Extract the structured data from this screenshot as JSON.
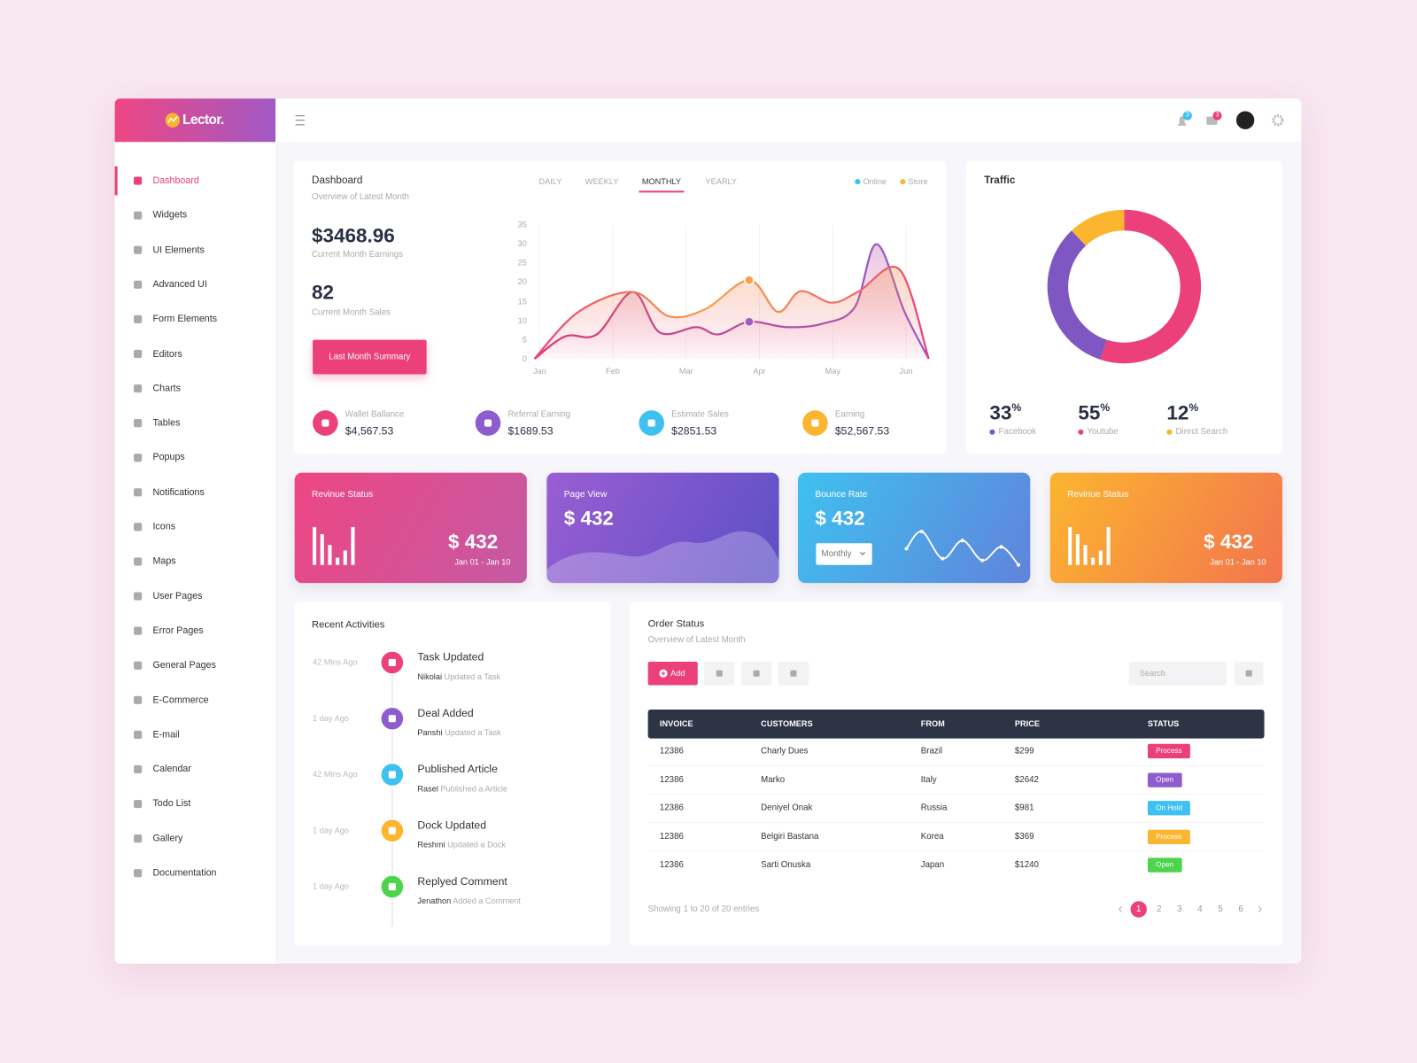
{
  "brand": "Lector.",
  "header": {
    "notifications": 3,
    "messages": 3
  },
  "sidebar": {
    "active": 0,
    "items": [
      "Dashboard",
      "Widgets",
      "UI Elements",
      "Advanced UI",
      "Form Elements",
      "Editors",
      "Charts",
      "Tables",
      "Popups",
      "Notifications",
      "Icons",
      "Maps",
      "User Pages",
      "Error Pages",
      "General Pages",
      "E-Commerce",
      "E-mail",
      "Calendar",
      "Todo List",
      "Gallery",
      "Documentation"
    ]
  },
  "dashboard": {
    "title": "Dashboard",
    "subtitle": "Overview of Latest Month",
    "tabs": [
      "DAILY",
      "WEEKLY",
      "MONTHLY",
      "YEARLY"
    ],
    "active_tab": 2,
    "earnings": "$3468.96",
    "earnings_label": "Current Month Earnings",
    "sales": "82",
    "sales_label": "Current Month Sales",
    "button": "Last Month Summary",
    "chart": {
      "type": "line",
      "xlim": [
        -0.1,
        5.4
      ],
      "xticks": [
        {
          "value": 0,
          "label": "Jan"
        },
        {
          "value": 1,
          "label": "Feb"
        },
        {
          "value": 2,
          "label": "Mar"
        },
        {
          "value": 3,
          "label": "Apr"
        },
        {
          "value": 4,
          "label": "May"
        },
        {
          "value": 5,
          "label": "Jun"
        }
      ],
      "ylim": [
        0,
        35
      ],
      "yticks": [
        0,
        5,
        10,
        15,
        20,
        25,
        30,
        35
      ],
      "grid": "x",
      "legend": "top-right",
      "series": [
        {
          "name": "Online",
          "color": "#3ec1f0",
          "x": [
            -0.07,
            0.35,
            0.78,
            1.27,
            1.64,
            2.14,
            2.44,
            2.86,
            3.37,
            3.86,
            4.3,
            4.6,
            4.98,
            5.31
          ],
          "values": [
            0,
            5.9,
            6.4,
            17.5,
            6.9,
            8.3,
            6.4,
            9.7,
            8.3,
            9.2,
            13.5,
            30,
            12.3,
            0
          ]
        },
        {
          "name": "Store",
          "color": "#fbb52f",
          "x": [
            -0.07,
            0.53,
            1.27,
            1.77,
            2.26,
            2.86,
            3.25,
            3.56,
            3.99,
            4.36,
            4.91,
            5.31
          ],
          "values": [
            0,
            12.3,
            17.5,
            11.1,
            13,
            20.6,
            12.3,
            17.7,
            14.7,
            17.7,
            23.4,
            0
          ]
        }
      ]
    },
    "stats": [
      {
        "label": "Wallet Ballance",
        "value": "$4,567.53",
        "color": "#ec407a"
      },
      {
        "label": "Referral Earning",
        "value": "$1689.53",
        "color": "#8e5ccf"
      },
      {
        "label": "Estimate Sales",
        "value": "$2851.53",
        "color": "#3ec1f0"
      },
      {
        "label": "Earning",
        "value": "$52,567.53",
        "color": "#fbb52f"
      }
    ]
  },
  "traffic": {
    "title": "Traffic",
    "chart": {
      "type": "pie",
      "series": [
        {
          "name": "Facebook",
          "value": 33,
          "unit": "%",
          "color": "#7e57c2"
        },
        {
          "name": "Youtube",
          "value": 55,
          "unit": "%",
          "color": "#ec407a"
        },
        {
          "name": "Direct Search",
          "value": 12,
          "unit": "%",
          "color": "#fbb52f"
        }
      ]
    }
  },
  "cards": [
    {
      "title": "Revinue Status",
      "value": "$ 432",
      "range": "Jan 01 - Jan 10"
    },
    {
      "title": "Page View",
      "value": "$ 432"
    },
    {
      "title": "Bounce Rate",
      "value": "$ 432",
      "select": "Monthly"
    },
    {
      "title": "Revinue Status",
      "value": "$ 432",
      "range": "Jan 01 - Jan 10"
    }
  ],
  "activities": {
    "title": "Recent Activities",
    "items": [
      {
        "time": "42 Mins Ago",
        "title": "Task Updated",
        "user": "Nikolai",
        "action": "Updated a Task",
        "color": "#ec407a"
      },
      {
        "time": "1 day Ago",
        "title": "Deal Added",
        "user": "Panshi",
        "action": "Updated a Task",
        "color": "#8e5ccf"
      },
      {
        "time": "42 Mins Ago",
        "title": "Published Article",
        "user": "Rasel",
        "action": "Published a Article",
        "color": "#3ec1f0"
      },
      {
        "time": "1 day Ago",
        "title": "Dock Updated",
        "user": "Reshmi",
        "action": "Updated a Dock",
        "color": "#fbb52f"
      },
      {
        "time": "1 day Ago",
        "title": "Replyed Comment",
        "user": "Jenathon",
        "action": "Added a Comment",
        "color": "#4cd44c"
      }
    ]
  },
  "orders": {
    "title": "Order Status",
    "subtitle": "Overview of Latest Month",
    "add": "Add",
    "search": "Search",
    "columns": [
      "INVOICE",
      "CUSTOMERS",
      "FROM",
      "PRICE",
      "STATUS"
    ],
    "rows": [
      {
        "invoice": "12386",
        "customer": "Charly Dues",
        "from": "Brazil",
        "price": "$299",
        "status": "Process",
        "status_color": "#ec407a"
      },
      {
        "invoice": "12386",
        "customer": "Marko",
        "from": "Italy",
        "price": "$2642",
        "status": "Open",
        "status_color": "#8e5ccf"
      },
      {
        "invoice": "12386",
        "customer": "Deniyel Onak",
        "from": "Russia",
        "price": "$981",
        "status": "On Hold",
        "status_color": "#3ec1f0"
      },
      {
        "invoice": "12386",
        "customer": "Belgiri Bastana",
        "from": "Korea",
        "price": "$369",
        "status": "Process",
        "status_color": "#fbb52f"
      },
      {
        "invoice": "12386",
        "customer": "Sarti Onuska",
        "from": "Japan",
        "price": "$1240",
        "status": "Open",
        "status_color": "#4cd44c"
      }
    ],
    "footer": "Showing 1 to 20 of 20 entries",
    "pages": [
      1,
      2,
      3,
      4,
      5,
      6
    ],
    "current_page": 0
  }
}
